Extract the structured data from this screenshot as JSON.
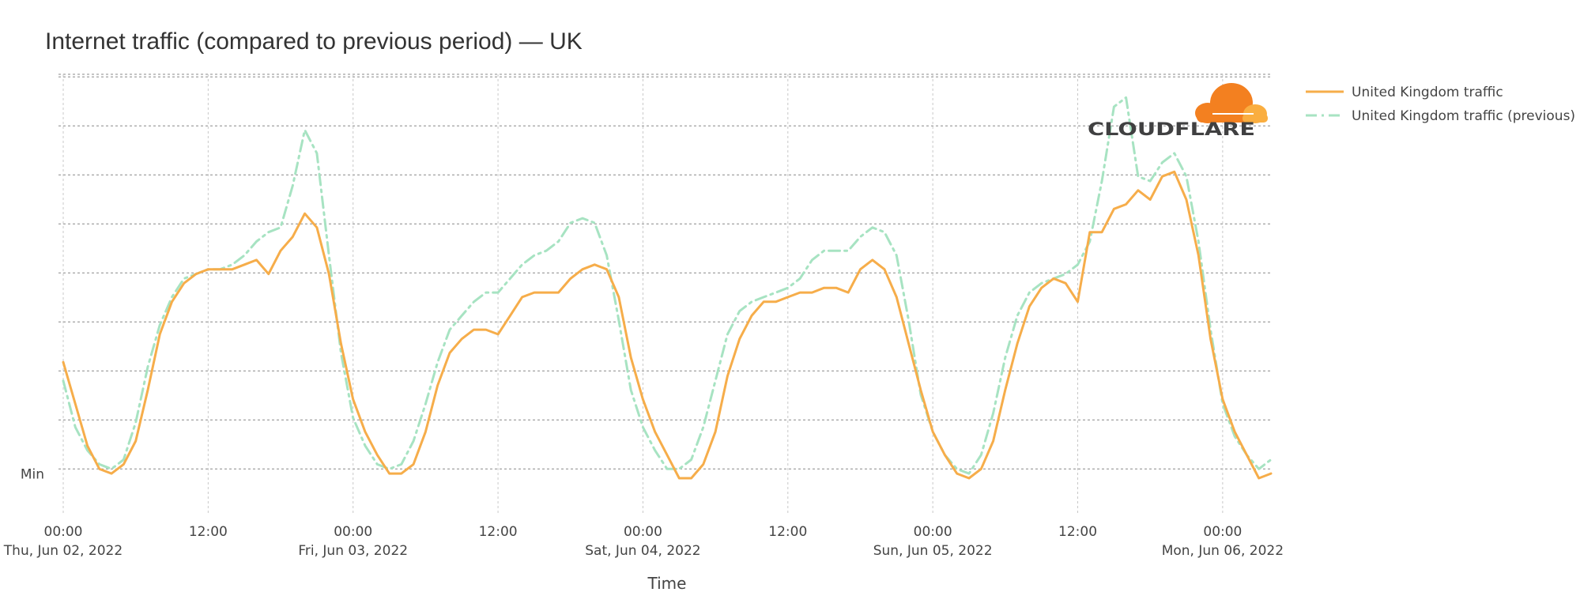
{
  "chart_data": {
    "type": "line",
    "title": "Internet traffic (compared to previous period) — UK",
    "xlabel": "Time",
    "ylabel": "",
    "y_ticks": [
      {
        "value": 0,
        "label": "Min"
      }
    ],
    "ylim": [
      -10,
      85
    ],
    "x_range": [
      "2022-06-02T00:00",
      "2022-06-06T04:00"
    ],
    "x_ticks": [
      {
        "time": "2022-06-02T00:00",
        "label": "00:00",
        "sublabel": "Thu, Jun 02, 2022"
      },
      {
        "time": "2022-06-02T12:00",
        "label": "12:00",
        "sublabel": ""
      },
      {
        "time": "2022-06-03T00:00",
        "label": "00:00",
        "sublabel": "Fri, Jun 03, 2022"
      },
      {
        "time": "2022-06-03T12:00",
        "label": "12:00",
        "sublabel": ""
      },
      {
        "time": "2022-06-04T00:00",
        "label": "00:00",
        "sublabel": "Sat, Jun 04, 2022"
      },
      {
        "time": "2022-06-04T12:00",
        "label": "12:00",
        "sublabel": ""
      },
      {
        "time": "2022-06-05T00:00",
        "label": "00:00",
        "sublabel": "Sun, Jun 05, 2022"
      },
      {
        "time": "2022-06-05T12:00",
        "label": "12:00",
        "sublabel": ""
      },
      {
        "time": "2022-06-06T00:00",
        "label": "00:00",
        "sublabel": "Mon, Jun 06, 2022"
      }
    ],
    "grid": true,
    "legend_position": "top-right",
    "logo": "CLOUDFLARE",
    "x": [
      "2022-06-02T00:00",
      "2022-06-02T01:00",
      "2022-06-02T02:00",
      "2022-06-02T03:00",
      "2022-06-02T04:00",
      "2022-06-02T05:00",
      "2022-06-02T06:00",
      "2022-06-02T07:00",
      "2022-06-02T08:00",
      "2022-06-02T09:00",
      "2022-06-02T10:00",
      "2022-06-02T11:00",
      "2022-06-02T12:00",
      "2022-06-02T13:00",
      "2022-06-02T14:00",
      "2022-06-02T15:00",
      "2022-06-02T16:00",
      "2022-06-02T17:00",
      "2022-06-02T18:00",
      "2022-06-02T19:00",
      "2022-06-02T20:00",
      "2022-06-02T21:00",
      "2022-06-02T22:00",
      "2022-06-02T23:00",
      "2022-06-03T00:00",
      "2022-06-03T01:00",
      "2022-06-03T02:00",
      "2022-06-03T03:00",
      "2022-06-03T04:00",
      "2022-06-03T05:00",
      "2022-06-03T06:00",
      "2022-06-03T07:00",
      "2022-06-03T08:00",
      "2022-06-03T09:00",
      "2022-06-03T10:00",
      "2022-06-03T11:00",
      "2022-06-03T12:00",
      "2022-06-03T13:00",
      "2022-06-03T14:00",
      "2022-06-03T15:00",
      "2022-06-03T16:00",
      "2022-06-03T17:00",
      "2022-06-03T18:00",
      "2022-06-03T19:00",
      "2022-06-03T20:00",
      "2022-06-03T21:00",
      "2022-06-03T22:00",
      "2022-06-03T23:00",
      "2022-06-04T00:00",
      "2022-06-04T01:00",
      "2022-06-04T02:00",
      "2022-06-04T03:00",
      "2022-06-04T04:00",
      "2022-06-04T05:00",
      "2022-06-04T06:00",
      "2022-06-04T07:00",
      "2022-06-04T08:00",
      "2022-06-04T09:00",
      "2022-06-04T10:00",
      "2022-06-04T11:00",
      "2022-06-04T12:00",
      "2022-06-04T13:00",
      "2022-06-04T14:00",
      "2022-06-04T15:00",
      "2022-06-04T16:00",
      "2022-06-04T17:00",
      "2022-06-04T18:00",
      "2022-06-04T19:00",
      "2022-06-04T20:00",
      "2022-06-04T21:00",
      "2022-06-04T22:00",
      "2022-06-04T23:00",
      "2022-06-05T00:00",
      "2022-06-05T01:00",
      "2022-06-05T02:00",
      "2022-06-05T03:00",
      "2022-06-05T04:00",
      "2022-06-05T05:00",
      "2022-06-05T06:00",
      "2022-06-05T07:00",
      "2022-06-05T08:00",
      "2022-06-05T09:00",
      "2022-06-05T10:00",
      "2022-06-05T11:00",
      "2022-06-05T12:00",
      "2022-06-05T13:00",
      "2022-06-05T14:00",
      "2022-06-05T15:00",
      "2022-06-05T16:00",
      "2022-06-05T17:00",
      "2022-06-05T18:00",
      "2022-06-05T19:00",
      "2022-06-05T20:00",
      "2022-06-05T21:00",
      "2022-06-05T22:00",
      "2022-06-05T23:00",
      "2022-06-06T00:00",
      "2022-06-06T01:00",
      "2022-06-06T02:00",
      "2022-06-06T03:00",
      "2022-06-06T04:00"
    ],
    "series": [
      {
        "name": "United Kingdom traffic",
        "color": "#F6AD4A",
        "dash": "solid",
        "values": [
          23,
          14,
          5,
          0,
          -1,
          1,
          6,
          17,
          29,
          36,
          40,
          42,
          43,
          43,
          43,
          44,
          45,
          42,
          47,
          50,
          55,
          52,
          42,
          27,
          15,
          8,
          3,
          -1,
          -1,
          1,
          8,
          18,
          25,
          28,
          30,
          30,
          29,
          33,
          37,
          38,
          38,
          38,
          41,
          43,
          44,
          43,
          37,
          24,
          15,
          8,
          3,
          -2,
          -2,
          1,
          8,
          20,
          28,
          33,
          36,
          36,
          37,
          38,
          38,
          39,
          39,
          38,
          43,
          45,
          43,
          37,
          27,
          17,
          8,
          3,
          -1,
          -2,
          0,
          6,
          17,
          27,
          35,
          39,
          41,
          40,
          36,
          51,
          51,
          56,
          57,
          60,
          58,
          63,
          64,
          58,
          46,
          28,
          15,
          8,
          3,
          -2,
          -1
        ]
      },
      {
        "name": "United Kingdom traffic (previous)",
        "color": "#A7E3C2",
        "dash": "dashdot",
        "values": [
          19,
          9,
          4,
          1,
          0,
          2,
          10,
          22,
          31,
          37,
          41,
          42,
          43,
          43,
          44,
          46,
          49,
          51,
          52,
          61,
          73,
          68,
          46,
          25,
          11,
          5,
          1,
          0,
          1,
          6,
          14,
          23,
          30,
          33,
          36,
          38,
          38,
          41,
          44,
          46,
          47,
          49,
          53,
          54,
          53,
          46,
          32,
          17,
          9,
          4,
          0,
          0,
          2,
          9,
          19,
          29,
          34,
          36,
          37,
          38,
          39,
          41,
          45,
          47,
          47,
          47,
          50,
          52,
          51,
          46,
          32,
          16,
          8,
          3,
          0,
          -1,
          3,
          12,
          24,
          33,
          38,
          40,
          41,
          42,
          44,
          49,
          62,
          78,
          80,
          63,
          62,
          66,
          68,
          63,
          49,
          30,
          14,
          7,
          3,
          0,
          2
        ]
      }
    ]
  }
}
